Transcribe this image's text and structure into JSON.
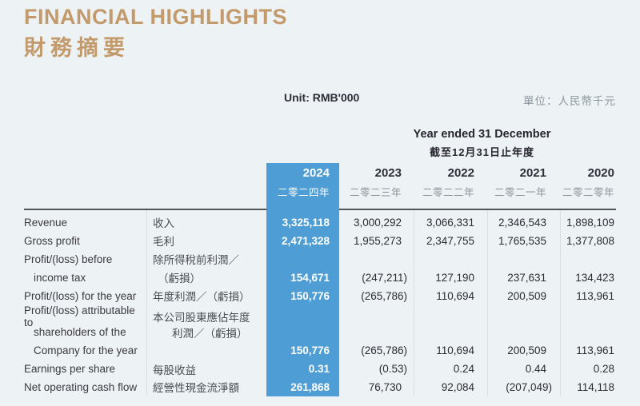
{
  "page": {
    "title_en": "FINANCIAL HIGHLIGHTS",
    "title_zh": "財務摘要",
    "unit_en": "Unit: RMB'000",
    "unit_zh": "單位：人民幣千元"
  },
  "table": {
    "period_header_en": "Year ended 31 December",
    "period_header_zh": "截至12月31日止年度",
    "columns": [
      {
        "year": "2024",
        "year_zh": "二零二四年",
        "highlight": true
      },
      {
        "year": "2023",
        "year_zh": "二零二三年",
        "highlight": false
      },
      {
        "year": "2022",
        "year_zh": "二零二二年",
        "highlight": false
      },
      {
        "year": "2021",
        "year_zh": "二零二一年",
        "highlight": false
      },
      {
        "year": "2020",
        "year_zh": "二零二零年",
        "highlight": false
      }
    ],
    "rows": [
      {
        "en": "Revenue",
        "zh": "收入",
        "indent_en": 0,
        "indent_zh": 0,
        "values": [
          "3,325,118",
          "3,000,292",
          "3,066,331",
          "2,346,543",
          "1,898,109"
        ]
      },
      {
        "en": "Gross profit",
        "zh": "毛利",
        "indent_en": 0,
        "indent_zh": 0,
        "values": [
          "2,471,328",
          "1,955,273",
          "2,347,755",
          "1,765,535",
          "1,377,808"
        ]
      },
      {
        "en": "Profit/(loss) before",
        "zh": "除所得稅前利潤／",
        "indent_en": 0,
        "indent_zh": 0,
        "values": [
          "",
          "",
          "",
          "",
          ""
        ]
      },
      {
        "en": "income tax",
        "zh": "（虧損）",
        "indent_en": 1,
        "indent_zh": 1,
        "values": [
          "154,671",
          "(247,211)",
          "127,190",
          "237,631",
          "134,423"
        ]
      },
      {
        "en": "Profit/(loss) for the year",
        "zh": "年度利潤／（虧損）",
        "indent_en": 0,
        "indent_zh": 0,
        "values": [
          "150,776",
          "(265,786)",
          "110,694",
          "200,509",
          "113,961"
        ]
      },
      {
        "en": "Profit/(loss) attributable to",
        "zh": "本公司股東應佔年度",
        "indent_en": 0,
        "indent_zh": 0,
        "values": [
          "",
          "",
          "",
          "",
          ""
        ]
      },
      {
        "en": "shareholders of the",
        "zh": "利潤／（虧損）",
        "indent_en": 1,
        "indent_zh": 2,
        "values": [
          "",
          "",
          "",
          "",
          ""
        ]
      },
      {
        "en": "Company for the year",
        "zh": "",
        "indent_en": 1,
        "indent_zh": 0,
        "values": [
          "150,776",
          "(265,786)",
          "110,694",
          "200,509",
          "113,961"
        ]
      },
      {
        "en": "Earnings per share",
        "zh": "每股收益",
        "indent_en": 0,
        "indent_zh": 0,
        "values": [
          "0.31",
          "(0.53)",
          "0.24",
          "0.44",
          "0.28"
        ]
      },
      {
        "en": "Net operating cash flow",
        "zh": "經營性現金流淨額",
        "indent_en": 0,
        "indent_zh": 0,
        "values": [
          "261,868",
          "76,730",
          "92,084",
          "(207,049)",
          "114,118"
        ]
      }
    ]
  },
  "colors": {
    "accent_gold": "#C39A6C",
    "highlight_blue": "#4E9DD4",
    "background": "#EDF2F5",
    "rule": "#54555B"
  }
}
